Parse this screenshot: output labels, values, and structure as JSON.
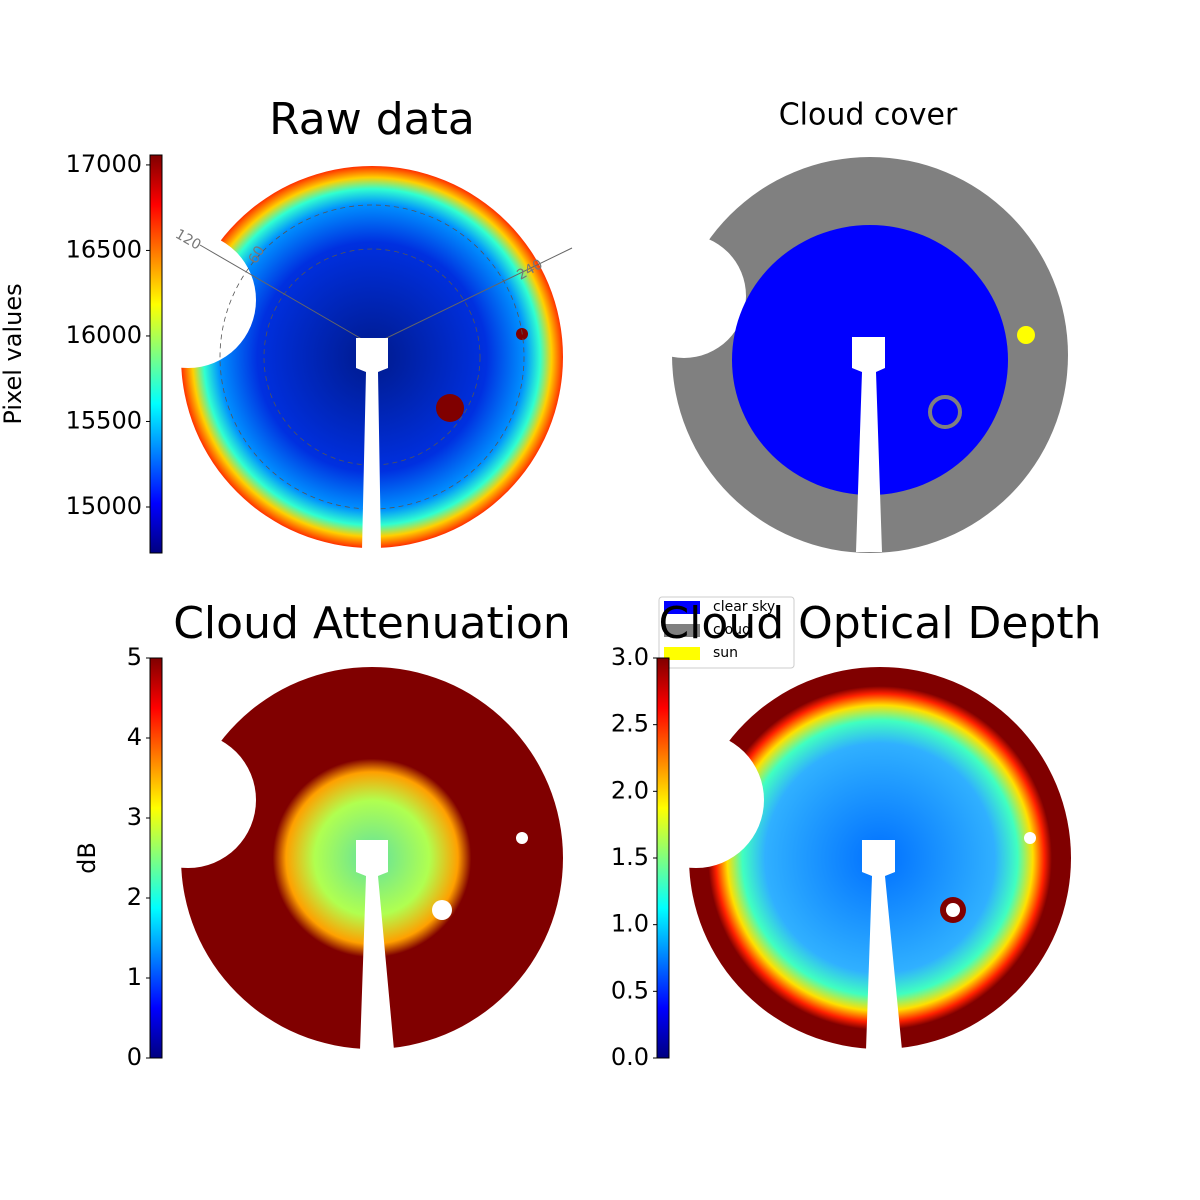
{
  "chart_data": [
    {
      "type": "image",
      "title": "Raw data",
      "colorbar_label": "Pixel values",
      "colormap": "jet",
      "clim": [
        14731,
        17058
      ],
      "cticks": [
        15000,
        15500,
        16000,
        16500,
        17000
      ],
      "annotations": [
        "120",
        "60",
        "240"
      ]
    },
    {
      "type": "image",
      "title": "Cloud cover",
      "legend": [
        {
          "name": "clear sky",
          "color": "#0000ff"
        },
        {
          "name": "cloud",
          "color": "#808080"
        },
        {
          "name": "sun",
          "color": "#ffff00"
        }
      ]
    },
    {
      "type": "image",
      "title": "Cloud Attenuation",
      "colorbar_label": "dB",
      "colormap": "jet",
      "clim": [
        0,
        5
      ],
      "cticks": [
        0,
        1,
        2,
        3,
        4,
        5
      ]
    },
    {
      "type": "image",
      "title": "Cloud Optical Depth",
      "colormap": "jet",
      "clim": [
        0,
        3
      ],
      "cticks": [
        {
          "value": 0,
          "label": "0.0"
        },
        {
          "value": 0.5,
          "label": "0.5"
        },
        {
          "value": 1,
          "label": "1.0"
        },
        {
          "value": 1.5,
          "label": "1.5"
        },
        {
          "value": 2,
          "label": "2.0"
        },
        {
          "value": 2.5,
          "label": "2.5"
        },
        {
          "value": 3,
          "label": "3.0"
        }
      ]
    }
  ]
}
